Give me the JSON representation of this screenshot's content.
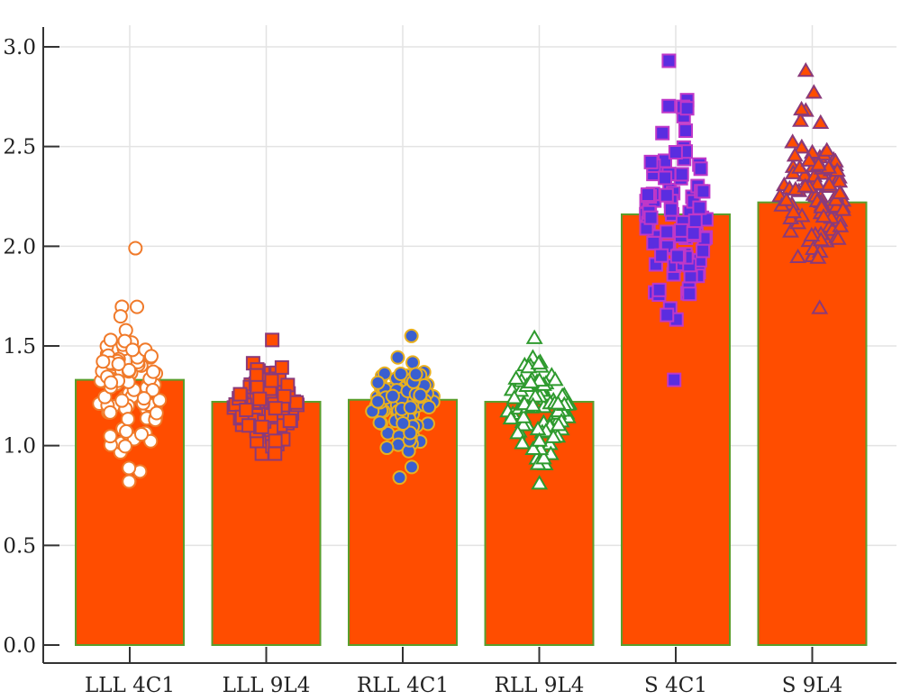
{
  "chart_data": {
    "type": "bar",
    "categories": [
      "LLL 4C1",
      "LLL 9L4",
      "RLL 4C1",
      "RLL 9L4",
      "S 4C1",
      "S 9L4"
    ],
    "values": [
      1.33,
      1.22,
      1.23,
      1.22,
      2.16,
      2.22
    ],
    "ylim": [
      0,
      3.0
    ],
    "yticks": [
      "0.0",
      "0.5",
      "1.0",
      "1.5",
      "2.0",
      "2.5",
      "3.0"
    ],
    "grid": true,
    "bar_color": "#ff4d00",
    "bar_edge_color": "#5a9e2c",
    "scatter": [
      {
        "category": "LLL 4C1",
        "marker": "circle",
        "fill": "#ffffff",
        "stroke": "#f07a2a",
        "min": 0.82,
        "max": 1.99,
        "center": 1.27
      },
      {
        "category": "LLL 9L4",
        "marker": "square",
        "fill": "#ff4d00",
        "stroke": "#8a3a7a",
        "min": 0.96,
        "max": 1.53,
        "center": 1.2
      },
      {
        "category": "RLL 4C1",
        "marker": "circle",
        "fill": "#3a5fd0",
        "stroke": "#e8b020",
        "min": 0.84,
        "max": 1.55,
        "center": 1.22
      },
      {
        "category": "RLL 9L4",
        "marker": "triangle",
        "fill": "#ffffff",
        "stroke": "#2e9a2e",
        "min": 0.81,
        "max": 1.54,
        "center": 1.2
      },
      {
        "category": "S 4C1",
        "marker": "square",
        "fill": "#5a2de0",
        "stroke": "#c038c8",
        "min": 1.33,
        "max": 2.93,
        "center": 2.15
      },
      {
        "category": "S 9L4",
        "marker": "triangle",
        "fill": "#ff4d00",
        "stroke": "#8a3a7a",
        "min": 1.69,
        "max": 2.88,
        "center": 2.22
      }
    ]
  }
}
